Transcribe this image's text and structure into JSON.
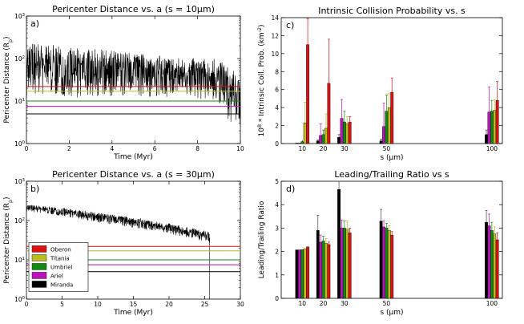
{
  "chart_data": [
    {
      "id": "a",
      "panel_label": "a)",
      "type": "line",
      "title": "Pericenter Distance vs. a (s = 10μm)",
      "xlabel": "Time (Myr)",
      "ylabel": "Pericenter Distance (R_p)",
      "xlim": [
        0,
        10
      ],
      "ylim": [
        1,
        1000
      ],
      "yscale": "log",
      "xticks": [
        0,
        2,
        4,
        6,
        8,
        10
      ],
      "yticks": [
        {
          "v": 1,
          "label": "10^0"
        },
        {
          "v": 10,
          "label": "10^1"
        },
        {
          "v": 100,
          "label": "10^2"
        },
        {
          "v": 1000,
          "label": "10^3"
        }
      ],
      "series": [
        {
          "name": "Oberon",
          "color": "#dd1111",
          "x": [
            0,
            10
          ],
          "values": [
            22,
            22
          ]
        },
        {
          "name": "Titania",
          "color": "#bbbb22",
          "x": [
            0,
            10
          ],
          "values": [
            17,
            17
          ]
        },
        {
          "name": "Umbriel",
          "color": "#118811",
          "x": [
            0,
            10
          ],
          "values": [
            10,
            10
          ]
        },
        {
          "name": "Ariel",
          "color": "#bb11bb",
          "x": [
            0,
            10
          ],
          "values": [
            7.5,
            7.5
          ]
        },
        {
          "name": "Miranda",
          "color": "#000000",
          "x": [
            0,
            10
          ],
          "values": [
            5,
            5
          ]
        }
      ],
      "trace": {
        "color": "#000000",
        "x": [
          0,
          1,
          2,
          3,
          4,
          5,
          6,
          7,
          8,
          8.8,
          9.2,
          9.6,
          10
        ],
        "hi": [
          260,
          220,
          180,
          170,
          160,
          140,
          120,
          110,
          100,
          100,
          80,
          60,
          30
        ],
        "lo": [
          12,
          13,
          12,
          12,
          13,
          12,
          12,
          12,
          11,
          10,
          5,
          3,
          2
        ]
      }
    },
    {
      "id": "b",
      "panel_label": "b)",
      "type": "line",
      "title": "Pericenter Distance vs. a (s = 30μm)",
      "xlabel": "Time (Myr)",
      "ylabel": "Pericenter Distance (R_p)",
      "xlim": [
        0,
        30
      ],
      "ylim": [
        1,
        1000
      ],
      "yscale": "log",
      "xticks": [
        0,
        5,
        10,
        15,
        20,
        25,
        30
      ],
      "yticks": [
        {
          "v": 1,
          "label": "10^0"
        },
        {
          "v": 10,
          "label": "10^1"
        },
        {
          "v": 100,
          "label": "10^2"
        },
        {
          "v": 1000,
          "label": "10^3"
        }
      ],
      "legend": {
        "position": "lower-left",
        "entries": [
          "Oberon",
          "Titania",
          "Umbriel",
          "Ariel",
          "Miranda"
        ]
      },
      "series": [
        {
          "name": "Oberon",
          "color": "#dd1111",
          "x": [
            0,
            30
          ],
          "values": [
            22,
            22
          ]
        },
        {
          "name": "Titania",
          "color": "#bbbb22",
          "x": [
            0,
            30
          ],
          "values": [
            17,
            17
          ]
        },
        {
          "name": "Umbriel",
          "color": "#118811",
          "x": [
            0,
            30
          ],
          "values": [
            10,
            10
          ]
        },
        {
          "name": "Ariel",
          "color": "#bb11bb",
          "x": [
            0,
            30
          ],
          "values": [
            7.5,
            7.5
          ]
        },
        {
          "name": "Miranda",
          "color": "#000000",
          "x": [
            0,
            30
          ],
          "values": [
            5,
            5
          ]
        }
      ],
      "trace": {
        "color": "#000000",
        "x": [
          0,
          5,
          10,
          15,
          20,
          25,
          25.7
        ],
        "hi": [
          260,
          210,
          160,
          120,
          85,
          55,
          50
        ],
        "lo": [
          170,
          130,
          90,
          65,
          45,
          30,
          25
        ]
      }
    },
    {
      "id": "c",
      "panel_label": "c)",
      "type": "bar",
      "title": "Intrinsic Collision Probability vs. s",
      "xlabel": "s (μm)",
      "ylabel": "10^8 * Intrinsic Coll. Prob. (km^-2)",
      "xlim": [
        0,
        105
      ],
      "ylim": [
        0,
        14
      ],
      "yticks": [
        0,
        2,
        4,
        6,
        8,
        10,
        12,
        14
      ],
      "categories": [
        "10",
        "20",
        "30",
        "50",
        "100"
      ],
      "category_x": [
        10,
        20,
        30,
        50,
        100
      ],
      "series": [
        {
          "name": "Miranda",
          "color": "#000000",
          "values": [
            0.05,
            0.3,
            0.7,
            0.3,
            1.0
          ],
          "err": [
            0,
            0.1,
            0.3,
            0.2,
            0.5
          ]
        },
        {
          "name": "Ariel",
          "color": "#bb11bb",
          "values": [
            0.05,
            0.9,
            2.8,
            1.9,
            3.5
          ],
          "err": [
            0,
            1.3,
            2.1,
            2.6,
            2.8
          ]
        },
        {
          "name": "Umbriel",
          "color": "#118811",
          "values": [
            0.2,
            1.0,
            2.4,
            3.6,
            3.6
          ],
          "err": [
            0,
            0.5,
            1.2,
            1.8,
            1.2
          ]
        },
        {
          "name": "Titania",
          "color": "#bbbb22",
          "values": [
            2.3,
            1.7,
            2.2,
            4.0,
            3.7
          ],
          "err": [
            2.3,
            1.6,
            0.8,
            1.6,
            1.2
          ]
        },
        {
          "name": "Oberon",
          "color": "#dd1111",
          "values": [
            11.0,
            6.7,
            2.4,
            5.7,
            4.8
          ],
          "err": [
            2.9,
            4.9,
            0.6,
            1.6,
            2.1
          ]
        }
      ]
    },
    {
      "id": "d",
      "panel_label": "d)",
      "type": "bar",
      "title": "Leading/Trailing Ratio vs s",
      "xlabel": "s (μm)",
      "ylabel": "Leading/Trailing Ratio",
      "xlim": [
        0,
        105
      ],
      "ylim": [
        0,
        5
      ],
      "yticks": [
        0,
        1,
        2,
        3,
        4,
        5
      ],
      "categories": [
        "10",
        "20",
        "30",
        "50",
        "100"
      ],
      "category_x": [
        10,
        20,
        30,
        50,
        100
      ],
      "series": [
        {
          "name": "Miranda",
          "color": "#000000",
          "values": [
            2.07,
            2.9,
            4.65,
            3.3,
            3.25
          ],
          "err": [
            0,
            0.65,
            0.45,
            0.5,
            0.5
          ]
        },
        {
          "name": "Ariel",
          "color": "#bb11bb",
          "values": [
            2.07,
            2.4,
            3.0,
            3.05,
            3.1
          ],
          "err": [
            0,
            0.3,
            0.35,
            0.25,
            0.5
          ]
        },
        {
          "name": "Umbriel",
          "color": "#118811",
          "values": [
            2.08,
            2.45,
            3.0,
            3.0,
            2.9
          ],
          "err": [
            0,
            0.2,
            0.3,
            0.2,
            0.35
          ]
        },
        {
          "name": "Titania",
          "color": "#bbbb22",
          "values": [
            2.12,
            2.35,
            2.95,
            2.9,
            2.75
          ],
          "err": [
            0,
            0.2,
            0.35,
            0.2,
            0.3
          ]
        },
        {
          "name": "Oberon",
          "color": "#dd1111",
          "values": [
            2.2,
            2.3,
            2.8,
            2.7,
            2.5
          ],
          "err": [
            0,
            0.1,
            0.2,
            0.15,
            0.3
          ]
        }
      ]
    }
  ]
}
